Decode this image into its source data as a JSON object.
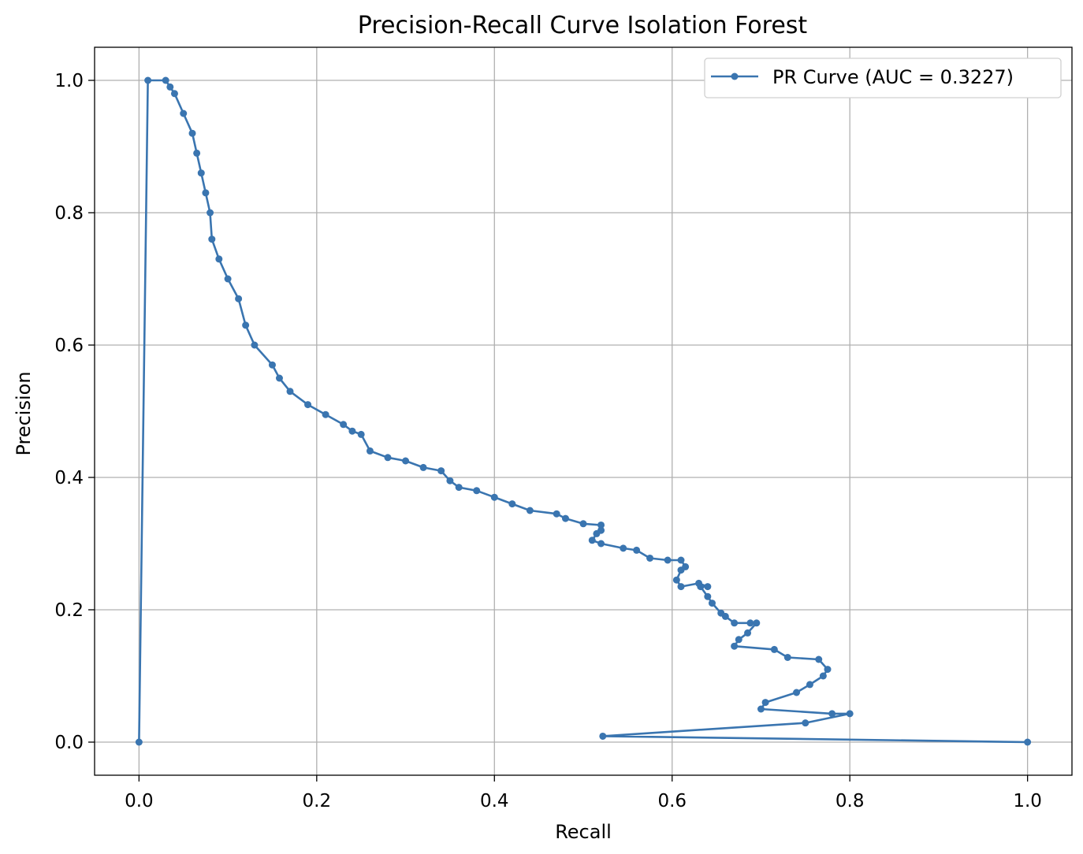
{
  "chart_data": {
    "type": "line",
    "title": "Precision-Recall Curve Isolation Forest",
    "xlabel": "Recall",
    "ylabel": "Precision",
    "xlim": [
      -0.05,
      1.05
    ],
    "ylim": [
      -0.05,
      1.05
    ],
    "xticks": [
      "0.0",
      "0.2",
      "0.4",
      "0.6",
      "0.8",
      "1.0"
    ],
    "yticks": [
      "0.0",
      "0.2",
      "0.4",
      "0.6",
      "0.8",
      "1.0"
    ],
    "grid": true,
    "legend_position": "top-right",
    "color": "#3a75b0",
    "series": [
      {
        "name": "PR Curve (AUC = 0.3227)",
        "x": [
          1.0,
          0.522,
          0.75,
          0.8,
          0.78,
          0.7,
          0.705,
          0.74,
          0.755,
          0.77,
          0.775,
          0.765,
          0.73,
          0.715,
          0.67,
          0.675,
          0.685,
          0.695,
          0.688,
          0.67,
          0.66,
          0.655,
          0.645,
          0.64,
          0.632,
          0.64,
          0.63,
          0.61,
          0.605,
          0.61,
          0.615,
          0.61,
          0.595,
          0.575,
          0.56,
          0.545,
          0.52,
          0.51,
          0.515,
          0.52,
          0.52,
          0.5,
          0.48,
          0.47,
          0.44,
          0.42,
          0.4,
          0.38,
          0.36,
          0.35,
          0.34,
          0.32,
          0.3,
          0.28,
          0.26,
          0.25,
          0.24,
          0.23,
          0.21,
          0.19,
          0.17,
          0.158,
          0.15,
          0.13,
          0.12,
          0.112,
          0.1,
          0.09,
          0.082,
          0.08,
          0.075,
          0.07,
          0.065,
          0.06,
          0.05,
          0.04,
          0.035,
          0.03,
          0.01,
          0.0
        ],
        "y": [
          0.0,
          0.009,
          0.029,
          0.043,
          0.043,
          0.05,
          0.06,
          0.075,
          0.087,
          0.1,
          0.11,
          0.125,
          0.128,
          0.14,
          0.145,
          0.155,
          0.165,
          0.18,
          0.18,
          0.18,
          0.19,
          0.195,
          0.21,
          0.22,
          0.235,
          0.235,
          0.24,
          0.235,
          0.245,
          0.26,
          0.265,
          0.275,
          0.275,
          0.278,
          0.29,
          0.293,
          0.3,
          0.305,
          0.315,
          0.32,
          0.328,
          0.33,
          0.338,
          0.345,
          0.35,
          0.36,
          0.37,
          0.38,
          0.385,
          0.395,
          0.41,
          0.415,
          0.425,
          0.43,
          0.44,
          0.465,
          0.47,
          0.48,
          0.495,
          0.51,
          0.53,
          0.55,
          0.57,
          0.6,
          0.63,
          0.67,
          0.7,
          0.73,
          0.76,
          0.8,
          0.83,
          0.86,
          0.89,
          0.92,
          0.95,
          0.98,
          0.99,
          1.0,
          1.0,
          0.0
        ]
      }
    ]
  }
}
